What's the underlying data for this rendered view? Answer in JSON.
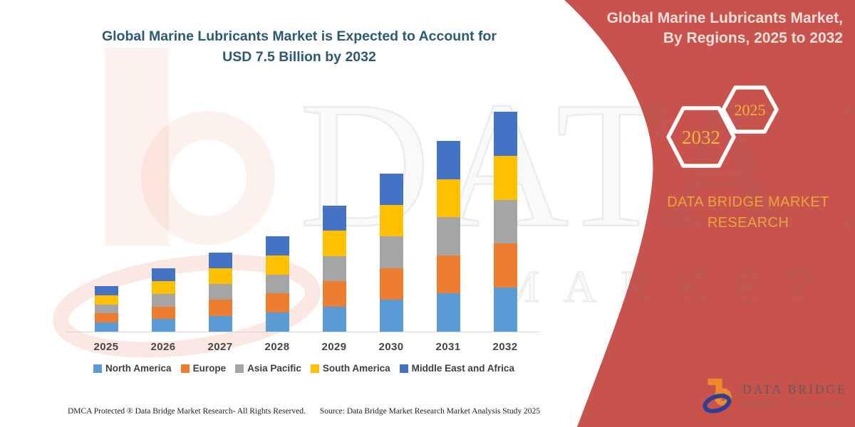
{
  "page": {
    "background": "#FFFFFF"
  },
  "title": {
    "line1": "Global Marine Lubricants Market is Expected to Account for",
    "line2": "USD 7.5 Billion by 2032",
    "color": "#2C5A73"
  },
  "ribbon": {
    "color": "#C8524C",
    "heading": "Global Marine Lubricants Market, By Regions, 2025 to 2032",
    "heading_color": "#F2DFDC",
    "badges": [
      {
        "label": "2032"
      },
      {
        "label": "2025"
      }
    ],
    "badge_text_color": "#EFB73E",
    "brand_line1": "DATA BRIDGE MARKET",
    "brand_line2": "RESEARCH",
    "brand_color": "#E9A63C"
  },
  "watermark": {
    "line1": "DATA BRIDGE",
    "line2": "MARKET RESEARCH"
  },
  "chart_data": {
    "type": "bar",
    "stacked": true,
    "title": "Global Marine Lubricants Market is Expected to Account for USD 7.5 Billion by 2032",
    "unit": "USD Billion",
    "categories": [
      "2025",
      "2026",
      "2027",
      "2028",
      "2029",
      "2030",
      "2031",
      "2032"
    ],
    "series": [
      {
        "name": "North America",
        "color": "#5B9BD5",
        "values": [
          0.31,
          0.43,
          0.54,
          0.65,
          0.86,
          1.08,
          1.3,
          1.5
        ]
      },
      {
        "name": "Europe",
        "color": "#ED7D31",
        "values": [
          0.31,
          0.43,
          0.54,
          0.65,
          0.86,
          1.08,
          1.3,
          1.5
        ]
      },
      {
        "name": "Asia Pacific",
        "color": "#A5A5A5",
        "values": [
          0.31,
          0.43,
          0.54,
          0.65,
          0.86,
          1.08,
          1.3,
          1.5
        ]
      },
      {
        "name": "South America",
        "color": "#FFC000",
        "values": [
          0.31,
          0.43,
          0.54,
          0.65,
          0.86,
          1.08,
          1.3,
          1.5
        ]
      },
      {
        "name": "Middle East and Africa",
        "color": "#4472C4",
        "values": [
          0.31,
          0.43,
          0.54,
          0.65,
          0.86,
          1.08,
          1.3,
          1.5
        ]
      }
    ],
    "totals": [
      1.55,
      2.15,
      2.7,
      3.25,
      4.3,
      5.4,
      6.5,
      7.5
    ],
    "value_axis_visible": false,
    "gridlines": false,
    "legend_position": "bottom",
    "note": "Values estimated from bar pixel heights; 2032 total anchored at 7.5; each region appears as an equal share of the yearly total."
  },
  "footer": {
    "left": "DMCA Protected ® Data Bridge Market Research-  All Rights Reserved.",
    "source": "Source: Data Bridge Market Research  Market Analysis Study 2025"
  },
  "logo": {
    "title": "DATA BRIDGE",
    "subtitle": "MARKET RESEARCH",
    "orange": "#EB8B2D",
    "blue": "#2C3F94",
    "text_color": "#625A64"
  }
}
